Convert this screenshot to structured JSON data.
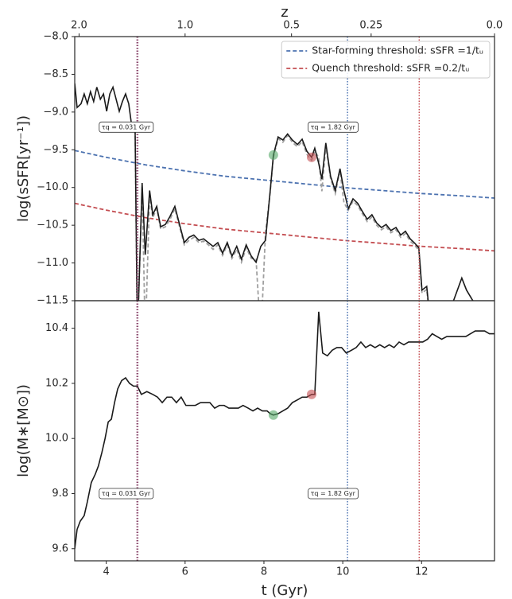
{
  "chart_data": [
    {
      "type": "line",
      "ylabel": "log(sSFR[yr⁻¹])",
      "x2label": "z",
      "x2ticks": [
        {
          "value": 2.0,
          "label": "2.0"
        },
        {
          "value": 1.0,
          "label": "1.0"
        },
        0.5,
        0.25,
        {
          "value": 0.0,
          "label": "0.0"
        }
      ],
      "x2ticks_t": [
        3.31,
        6.0,
        8.7,
        10.72,
        13.85
      ],
      "xlim": [
        3.2,
        13.85
      ],
      "ylim": [
        -11.5,
        -8.0
      ],
      "yticks": [
        {
          "value": -8.0,
          "label": "−8.0"
        },
        {
          "value": -8.5,
          "label": "−8.5"
        },
        {
          "value": -9.0,
          "label": "−9.0"
        },
        {
          "value": -9.5,
          "label": "−9.5"
        },
        {
          "value": -10.0,
          "label": "−10.0"
        },
        {
          "value": -10.5,
          "label": "−10.5"
        },
        {
          "value": -11.0,
          "label": "−11.0"
        },
        {
          "value": -11.5,
          "label": "−11.5"
        }
      ],
      "legend": "upper right",
      "series": [
        {
          "name": "Star-forming threshold: sSFR =1/tᵤ",
          "color": "#4c72b0",
          "dash": true,
          "x": [
            3.2,
            4,
            5,
            6,
            7,
            8,
            9,
            10,
            11,
            12,
            13,
            13.85
          ],
          "values": [
            -9.51,
            -9.6,
            -9.7,
            -9.78,
            -9.85,
            -9.9,
            -9.95,
            -10.0,
            -10.04,
            -10.08,
            -10.11,
            -10.14
          ]
        },
        {
          "name": "Quench threshold: sSFR =0.2/tᵤ",
          "color": "#c44e52",
          "dash": true,
          "x": [
            3.2,
            4,
            5,
            6,
            7,
            8,
            9,
            10,
            11,
            12,
            13,
            13.85
          ],
          "values": [
            -10.21,
            -10.3,
            -10.4,
            -10.48,
            -10.55,
            -10.6,
            -10.65,
            -10.7,
            -10.74,
            -10.78,
            -10.81,
            -10.84
          ]
        },
        {
          "color": "#a0a0a0",
          "dash": true,
          "x": [
            4.73,
            4.79,
            4.91,
            4.99,
            5.1,
            5.18,
            5.28,
            5.38,
            5.5,
            5.62,
            5.74,
            5.86,
            5.98,
            6.1,
            6.22,
            6.35,
            6.47,
            6.59,
            6.71,
            6.83,
            6.95,
            7.07,
            7.19,
            7.31,
            7.43,
            7.55,
            7.68,
            7.8,
            7.92,
            8.04,
            8.16,
            8.24,
            8.36,
            8.48,
            8.6,
            8.72,
            8.85,
            8.97,
            9.09,
            9.21,
            9.29,
            9.39,
            9.47,
            9.57,
            9.69,
            9.81,
            9.93,
            10.03,
            10.14,
            10.26,
            10.38,
            10.5,
            10.62,
            10.74,
            10.86,
            10.98,
            11.1,
            11.22,
            11.35,
            11.47,
            11.59,
            11.71,
            11.83,
            11.93,
            12.01,
            12.13,
            12.21
          ],
          "values": [
            -9.15,
            -12.0,
            -9.98,
            -12.0,
            -10.1,
            -10.4,
            -10.28,
            -10.55,
            -10.52,
            -10.42,
            -10.28,
            -10.52,
            -10.76,
            -10.7,
            -10.66,
            -10.73,
            -10.71,
            -10.76,
            -10.82,
            -10.76,
            -10.9,
            -10.76,
            -10.94,
            -10.82,
            -10.99,
            -10.8,
            -10.94,
            -10.95,
            -12.0,
            -10.6,
            -10.06,
            -9.6,
            -9.35,
            -9.4,
            -9.31,
            -9.4,
            -9.46,
            -9.39,
            -9.56,
            -9.64,
            -9.52,
            -9.6,
            -10.05,
            -9.45,
            -9.88,
            -10.08,
            -9.78,
            -10.2,
            -10.3,
            -10.18,
            -10.24,
            -10.35,
            -10.45,
            -10.39,
            -10.5,
            -10.56,
            -10.52,
            -10.6,
            -10.56,
            -10.66,
            -10.61,
            -10.71,
            -10.77,
            -10.83,
            -11.4,
            -11.35,
            -11.76
          ]
        },
        {
          "color": "#1a1a1a",
          "dash": false,
          "x": [
            3.2,
            3.26,
            3.36,
            3.44,
            3.52,
            3.6,
            3.68,
            3.76,
            3.85,
            3.93,
            4.01,
            4.09,
            4.17,
            4.25,
            4.33,
            4.41,
            4.49,
            4.57,
            4.65,
            4.73,
            4.79,
            4.91,
            4.99,
            5.1,
            5.18,
            5.28,
            5.38,
            5.5,
            5.62,
            5.74,
            5.86,
            5.98,
            6.1,
            6.22,
            6.35,
            6.47,
            6.59,
            6.71,
            6.83,
            6.95,
            7.07,
            7.19,
            7.31,
            7.43,
            7.55,
            7.68,
            7.8,
            7.92,
            8.04,
            8.16,
            8.24,
            8.36,
            8.48,
            8.6,
            8.72,
            8.85,
            8.97,
            9.09,
            9.21,
            9.29,
            9.39,
            9.47,
            9.57,
            9.69,
            9.81,
            9.93,
            10.03,
            10.14,
            10.26,
            10.38,
            10.5,
            10.62,
            10.74,
            10.86,
            10.98,
            11.1,
            11.22,
            11.35,
            11.47,
            11.59,
            11.71,
            11.83,
            11.93,
            12.01,
            12.13,
            12.21,
            12.45,
            12.6,
            13.02,
            13.14,
            13.3,
            13.42
          ],
          "values": [
            -8.62,
            -8.94,
            -8.89,
            -8.76,
            -8.89,
            -8.73,
            -8.86,
            -8.67,
            -8.83,
            -8.76,
            -8.99,
            -8.76,
            -8.67,
            -8.83,
            -8.99,
            -8.86,
            -8.76,
            -8.89,
            -9.2,
            -9.15,
            -12.0,
            -9.94,
            -10.89,
            -10.04,
            -10.36,
            -10.25,
            -10.52,
            -10.49,
            -10.38,
            -10.25,
            -10.49,
            -10.73,
            -10.66,
            -10.63,
            -10.7,
            -10.68,
            -10.73,
            -10.78,
            -10.73,
            -10.87,
            -10.73,
            -10.91,
            -10.78,
            -10.95,
            -10.76,
            -10.91,
            -10.99,
            -10.78,
            -10.7,
            -10.04,
            -9.57,
            -9.33,
            -9.37,
            -9.29,
            -9.37,
            -9.43,
            -9.36,
            -9.52,
            -9.6,
            -9.48,
            -9.68,
            -9.89,
            -9.41,
            -9.85,
            -10.04,
            -9.75,
            -10.04,
            -10.28,
            -10.15,
            -10.21,
            -10.32,
            -10.42,
            -10.36,
            -10.47,
            -10.53,
            -10.49,
            -10.57,
            -10.53,
            -10.63,
            -10.58,
            -10.68,
            -10.74,
            -10.8,
            -11.36,
            -11.31,
            -11.73,
            -11.8,
            -11.8,
            -11.2,
            -11.36,
            -11.5,
            -11.73
          ]
        }
      ],
      "markers": [
        {
          "x": 8.24,
          "y": -9.57,
          "color": "#55a868"
        },
        {
          "x": 9.21,
          "y": -9.6,
          "color": "#c44e52"
        }
      ],
      "vlines": [
        {
          "x": 4.79,
          "color": "#8c4a6e"
        },
        {
          "x": 10.12,
          "color": "#4c72b0"
        },
        {
          "x": 11.94,
          "color": "#c44e52"
        }
      ],
      "annotations": [
        {
          "text": "τq = 0.031 Gyr",
          "x": 4.5,
          "y": -9.2
        },
        {
          "text": "τq = 1.82 Gyr",
          "x": 9.75,
          "y": -9.2
        }
      ]
    },
    {
      "type": "line",
      "ylabel": "log(M∗[M⊙])",
      "xlabel": "t (Gyr)",
      "xlim": [
        3.2,
        13.85
      ],
      "xticks": [
        4,
        6,
        8,
        10,
        12
      ],
      "ylim": [
        9.556,
        10.5
      ],
      "yticks": [
        9.6,
        9.8,
        {
          "value": 10.0,
          "label": "10.0"
        },
        10.2,
        10.4
      ],
      "series": [
        {
          "color": "#1a1a1a",
          "dash": false,
          "x": [
            3.2,
            3.26,
            3.34,
            3.44,
            3.52,
            3.62,
            3.72,
            3.8,
            3.89,
            3.97,
            4.05,
            4.13,
            4.21,
            4.29,
            4.39,
            4.49,
            4.59,
            4.69,
            4.79,
            4.89,
            5.03,
            5.18,
            5.3,
            5.42,
            5.54,
            5.66,
            5.78,
            5.9,
            6.02,
            6.14,
            6.26,
            6.39,
            6.51,
            6.63,
            6.75,
            6.87,
            6.99,
            7.11,
            7.23,
            7.35,
            7.47,
            7.6,
            7.72,
            7.84,
            7.96,
            8.08,
            8.16,
            8.24,
            8.36,
            8.48,
            8.6,
            8.72,
            8.85,
            8.97,
            9.09,
            9.21,
            9.29,
            9.39,
            9.49,
            9.61,
            9.73,
            9.85,
            9.97,
            10.09,
            10.22,
            10.34,
            10.46,
            10.58,
            10.7,
            10.82,
            10.94,
            11.06,
            11.18,
            11.3,
            11.43,
            11.55,
            11.67,
            11.79,
            11.91,
            12.03,
            12.15,
            12.27,
            12.39,
            12.51,
            12.64,
            12.76,
            12.88,
            13.0,
            13.12,
            13.24,
            13.36,
            13.48,
            13.6,
            13.72,
            13.85
          ],
          "values": [
            9.6,
            9.67,
            9.7,
            9.72,
            9.77,
            9.84,
            9.87,
            9.9,
            9.95,
            10.0,
            10.06,
            10.07,
            10.13,
            10.18,
            10.21,
            10.22,
            10.2,
            10.19,
            10.19,
            10.16,
            10.17,
            10.16,
            10.15,
            10.13,
            10.15,
            10.15,
            10.13,
            10.15,
            10.12,
            10.12,
            10.12,
            10.13,
            10.13,
            10.13,
            10.11,
            10.12,
            10.12,
            10.11,
            10.11,
            10.11,
            10.12,
            10.11,
            10.1,
            10.11,
            10.1,
            10.1,
            10.09,
            10.085,
            10.09,
            10.1,
            10.11,
            10.13,
            10.14,
            10.15,
            10.15,
            10.16,
            10.16,
            10.46,
            10.31,
            10.3,
            10.32,
            10.33,
            10.33,
            10.31,
            10.32,
            10.33,
            10.35,
            10.33,
            10.34,
            10.33,
            10.34,
            10.33,
            10.34,
            10.33,
            10.35,
            10.34,
            10.35,
            10.35,
            10.35,
            10.35,
            10.36,
            10.38,
            10.37,
            10.36,
            10.37,
            10.37,
            10.37,
            10.37,
            10.37,
            10.38,
            10.39,
            10.39,
            10.39,
            10.38,
            10.38
          ]
        }
      ],
      "markers": [
        {
          "x": 8.24,
          "y": 10.085,
          "color": "#55a868"
        },
        {
          "x": 9.21,
          "y": 10.16,
          "color": "#c44e52"
        }
      ],
      "vlines": [
        {
          "x": 4.79,
          "color": "#8c4a6e"
        },
        {
          "x": 10.12,
          "color": "#4c72b0"
        },
        {
          "x": 11.94,
          "color": "#c44e52"
        }
      ],
      "annotations": [
        {
          "text": "τq = 0.031 Gyr",
          "x": 4.5,
          "y": 9.8
        },
        {
          "text": "τq = 1.82 Gyr",
          "x": 9.75,
          "y": 9.8
        }
      ]
    }
  ]
}
